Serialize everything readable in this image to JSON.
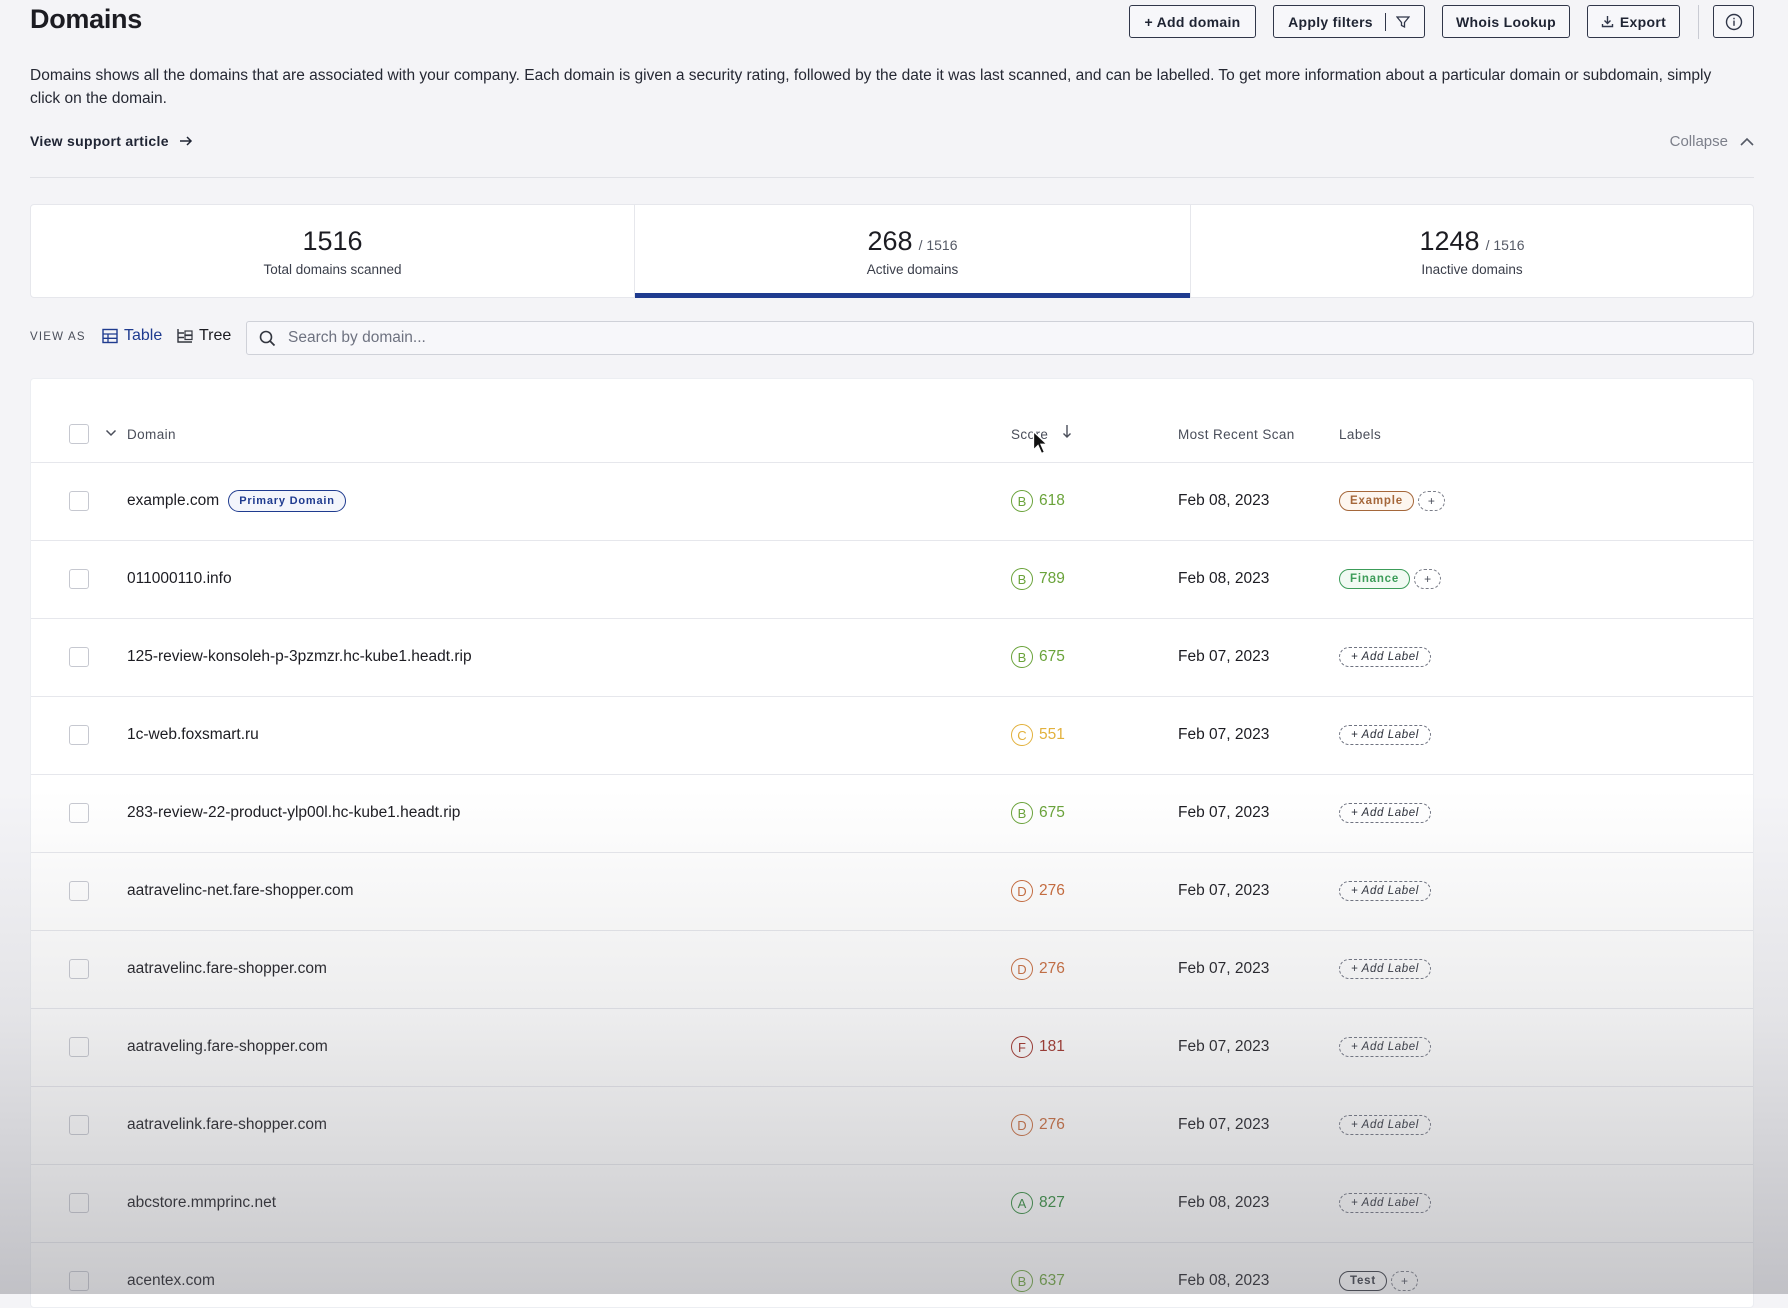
{
  "header": {
    "title": "Domains",
    "add_domain": "+ Add domain",
    "apply_filters": "Apply filters",
    "whois_lookup": "Whois Lookup",
    "export": "Export"
  },
  "description": "Domains shows all the domains that are associated with your company. Each domain is given a security rating, followed by the date it was last scanned, and can be labelled. To get more information about a particular domain or subdomain, simply click on the domain.",
  "support_link": "View support article",
  "collapse": "Collapse",
  "stats": {
    "total": {
      "value": "1516",
      "label": "Total domains scanned"
    },
    "active": {
      "value": "268",
      "of": "/ 1516",
      "label": "Active domains"
    },
    "inactive": {
      "value": "1248",
      "of": "/ 1516",
      "label": "Inactive domains"
    }
  },
  "view": {
    "label": "VIEW AS",
    "table": "Table",
    "tree": "Tree",
    "search_placeholder": "Search by domain..."
  },
  "table": {
    "columns": {
      "domain": "Domain",
      "score": "Score",
      "scan": "Most Recent Scan",
      "labels": "Labels"
    },
    "primary_tag": "Primary Domain",
    "add_label": "+ Add Label",
    "plus": "+",
    "rows": [
      {
        "domain": "example.com",
        "grade": "B",
        "score": "618",
        "scan": "Feb 08, 2023",
        "label": "Example"
      },
      {
        "domain": "011000110.info",
        "grade": "B",
        "score": "789",
        "scan": "Feb 08, 2023",
        "label": "Finance"
      },
      {
        "domain": "125-review-konsoleh-p-3pzmzr.hc-kube1.headt.rip",
        "grade": "B",
        "score": "675",
        "scan": "Feb 07, 2023"
      },
      {
        "domain": "1c-web.foxsmart.ru",
        "grade": "C",
        "score": "551",
        "scan": "Feb 07, 2023"
      },
      {
        "domain": "283-review-22-product-ylp00l.hc-kube1.headt.rip",
        "grade": "B",
        "score": "675",
        "scan": "Feb 07, 2023"
      },
      {
        "domain": "aatravelinc-net.fare-shopper.com",
        "grade": "D",
        "score": "276",
        "scan": "Feb 07, 2023"
      },
      {
        "domain": "aatravelinc.fare-shopper.com",
        "grade": "D",
        "score": "276",
        "scan": "Feb 07, 2023"
      },
      {
        "domain": "aatraveling.fare-shopper.com",
        "grade": "F",
        "score": "181",
        "scan": "Feb 07, 2023"
      },
      {
        "domain": "aatravelink.fare-shopper.com",
        "grade": "D",
        "score": "276",
        "scan": "Feb 07, 2023"
      },
      {
        "domain": "abcstore.mmprinc.net",
        "grade": "A",
        "score": "827",
        "scan": "Feb 08, 2023"
      },
      {
        "domain": "acentex.com",
        "grade": "B",
        "score": "637",
        "scan": "Feb 08, 2023",
        "label": "Test"
      }
    ]
  },
  "colors": {
    "accent": "#1f3b8f",
    "grade_A": "#2f8a3a",
    "grade_B": "#6aa33a",
    "grade_C": "#e2b13c",
    "grade_D": "#c7693a",
    "grade_F": "#9c2b22",
    "label_example": "#a5673a",
    "label_finance": "#3c9c59",
    "label_test": "#33363f"
  }
}
